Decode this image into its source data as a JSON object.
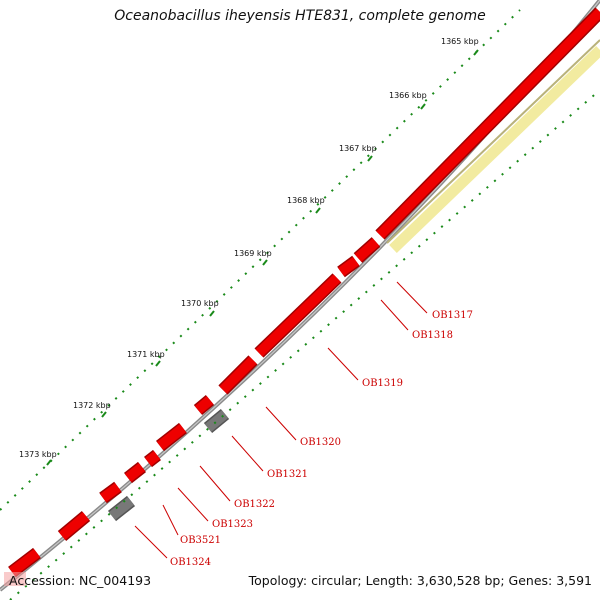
{
  "header": {
    "title": "Oceanobacillus iheyensis HTE831, complete genome"
  },
  "footer": {
    "accession": "Accession: NC_004193",
    "stats": "Topology: circular; Length: 3,630,528 bp; Genes: 3,591"
  },
  "ticks": [
    "1365 kbp",
    "1366 kbp",
    "1367 kbp",
    "1368 kbp",
    "1369 kbp",
    "1370 kbp",
    "1371 kbp",
    "1372 kbp",
    "1373 kbp"
  ],
  "genes": [
    "OB1317",
    "OB1318",
    "OB1319",
    "OB1320",
    "OB1321",
    "OB1322",
    "OB1323",
    "OB3521",
    "OB1324"
  ],
  "colors": {
    "backbone": "#808080",
    "cds": "#ee0000",
    "cds_dark": "#a00000",
    "rna": "#707070",
    "feature": "#f2eba0",
    "tick": "#1a8a1a",
    "label": "#cc0000"
  }
}
